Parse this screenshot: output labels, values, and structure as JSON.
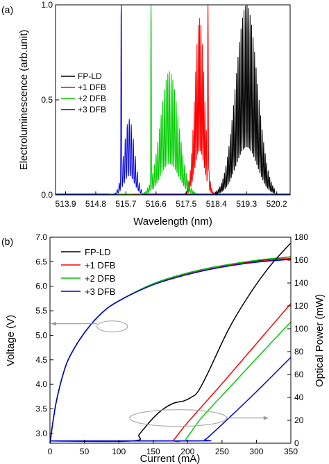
{
  "chart_data": [
    {
      "panel_label": "(a)",
      "type": "line",
      "xlabel": "Wavelength (nm)",
      "ylabel": "Electroluminescence (arb.unit)",
      "xlim": [
        513.6,
        520.6
      ],
      "ylim": [
        0,
        1.0
      ],
      "xticks": [
        "513.9",
        "514.8",
        "515.7",
        "516.6",
        "517.5",
        "518.4",
        "519.3",
        "520.2"
      ],
      "xtick_values": [
        513.9,
        514.8,
        515.7,
        516.6,
        517.5,
        518.4,
        519.3,
        520.2
      ],
      "yticks": [
        "0.0",
        "0.5",
        "1.0"
      ],
      "ytick_values": [
        0,
        0.5,
        1.0
      ],
      "grid": false,
      "legend_position": "center-left",
      "series": [
        {
          "name": "FP-LD",
          "color": "#000000",
          "center": 519.3,
          "width": 0.45,
          "x_start": 518.1,
          "x_end": 520.15,
          "mode_spacing": 0.045,
          "peak": 1.0
        },
        {
          "name": "+1 DFB",
          "color": "#ff0000",
          "center": 517.9,
          "width": 0.2,
          "x_start": 517.3,
          "x_end": 518.4,
          "mode_spacing": 0.04,
          "peak": 0.93,
          "dfb_peak_x": 518.15,
          "dfb_peak": 0.93
        },
        {
          "name": "+2 DFB",
          "color": "#00cc00",
          "center": 517.0,
          "width": 0.38,
          "x_start": 515.9,
          "x_end": 518.0,
          "mode_spacing": 0.05,
          "peak": 0.65,
          "dfb_peak_x": 516.45,
          "dfb_peak": 1.0
        },
        {
          "name": "+3 DFB",
          "color": "#0000dd",
          "center": 515.8,
          "width": 0.22,
          "x_start": 515.2,
          "x_end": 516.2,
          "mode_spacing": 0.06,
          "peak": 0.4,
          "dfb_peak_x": 515.56,
          "dfb_peak": 1.0
        }
      ]
    },
    {
      "panel_label": "(b)",
      "type": "line",
      "xlabel": "Current (mA)",
      "ylabel": "Voltage (V)",
      "ylabel_right": "Optical Power (mW)",
      "xlim": [
        0,
        350
      ],
      "ylim": [
        2.8,
        7.0
      ],
      "ylim_right": [
        0,
        180
      ],
      "xticks": [
        "0",
        "50",
        "100",
        "150",
        "200",
        "250",
        "300",
        "350"
      ],
      "xtick_values": [
        0,
        50,
        100,
        150,
        200,
        250,
        300,
        350
      ],
      "yticks": [
        "3.0",
        "3.5",
        "4.0",
        "4.5",
        "5.0",
        "5.5",
        "6.0",
        "6.5",
        "7.0"
      ],
      "ytick_values": [
        3.0,
        3.5,
        4.0,
        4.5,
        5.0,
        5.5,
        6.0,
        6.5,
        7.0
      ],
      "yticks_right": [
        "0",
        "20",
        "40",
        "60",
        "80",
        "100",
        "120",
        "140",
        "160",
        "180"
      ],
      "ytick_right_values": [
        0,
        20,
        40,
        60,
        80,
        100,
        120,
        140,
        160,
        180
      ],
      "grid": false,
      "legend_position": "top-left",
      "voltage_series": [
        {
          "name": "FP-LD",
          "color": "#000000",
          "x": [
            0,
            2,
            5,
            10,
            20,
            30,
            50,
            75,
            100,
            150,
            200,
            250,
            300,
            350
          ],
          "y": [
            2.8,
            3.0,
            3.3,
            3.7,
            4.25,
            4.6,
            5.05,
            5.45,
            5.7,
            6.05,
            6.27,
            6.42,
            6.52,
            6.6
          ]
        },
        {
          "name": "+1 DFB",
          "color": "#ff0000",
          "x": [
            0,
            2,
            5,
            10,
            20,
            30,
            50,
            75,
            100,
            150,
            200,
            250,
            300,
            350
          ],
          "y": [
            2.8,
            3.0,
            3.3,
            3.7,
            4.25,
            4.6,
            5.05,
            5.45,
            5.7,
            6.04,
            6.25,
            6.4,
            6.5,
            6.57
          ]
        },
        {
          "name": "+2 DFB",
          "color": "#00cc00",
          "x": [
            0,
            2,
            5,
            10,
            20,
            30,
            50,
            75,
            100,
            150,
            200,
            250,
            300,
            350
          ],
          "y": [
            2.8,
            3.0,
            3.3,
            3.7,
            4.25,
            4.6,
            5.05,
            5.45,
            5.7,
            6.05,
            6.27,
            6.42,
            6.53,
            6.6
          ]
        },
        {
          "name": "+3 DFB",
          "color": "#0000dd",
          "x": [
            0,
            2,
            5,
            10,
            20,
            30,
            50,
            75,
            100,
            150,
            200,
            250,
            300,
            350
          ],
          "y": [
            2.8,
            3.0,
            3.3,
            3.7,
            4.25,
            4.6,
            5.05,
            5.45,
            5.7,
            6.03,
            6.24,
            6.39,
            6.49,
            6.55
          ]
        }
      ],
      "power_series": [
        {
          "name": "FP-LD",
          "color": "#000000",
          "x": [
            0,
            120,
            130,
            150,
            165,
            180,
            195,
            205,
            215,
            230,
            260,
            290,
            320,
            350
          ],
          "y": [
            2,
            2,
            8,
            22,
            30,
            35,
            37,
            40,
            45,
            62,
            100,
            130,
            155,
            175
          ]
        },
        {
          "name": "+1 DFB",
          "color": "#ff0000",
          "x": [
            0,
            175,
            180,
            200,
            250,
            300,
            350
          ],
          "y": [
            2,
            2,
            3,
            18,
            52,
            87,
            122
          ]
        },
        {
          "name": "+2 DFB",
          "color": "#00cc00",
          "x": [
            0,
            190,
            198,
            220,
            260,
            300,
            350
          ],
          "y": [
            2,
            2,
            4,
            22,
            48,
            74,
            106
          ]
        },
        {
          "name": "+3 DFB",
          "color": "#0000dd",
          "x": [
            0,
            215,
            225,
            235,
            260,
            300,
            350
          ],
          "y": [
            2,
            2,
            3,
            8,
            22,
            45,
            75
          ]
        }
      ],
      "annotations": [
        {
          "type": "arrow",
          "direction": "left",
          "points_to": "voltage",
          "ellipse_center": [
            42,
            5.18
          ]
        },
        {
          "type": "arrow",
          "direction": "right",
          "points_to": "optical power",
          "ellipse_center": [
            255,
            22
          ]
        }
      ]
    }
  ]
}
